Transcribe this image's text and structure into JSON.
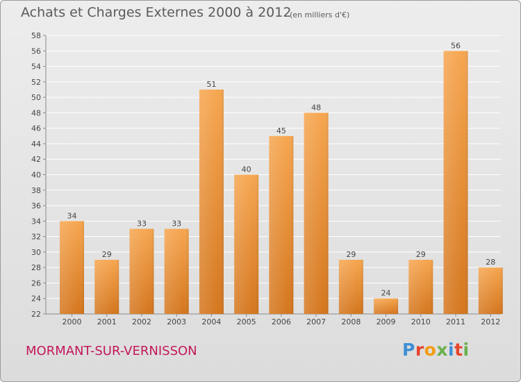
{
  "header": {
    "title": "Achats et Charges Externes 2000 à 2012",
    "unit": "(en milliers d'€)"
  },
  "footer": {
    "commune": "MORMANT-SUR-VERNISSON",
    "logo": "Proxiti",
    "logo_colors": [
      "#3f8fd6",
      "#e8452c",
      "#f39c12",
      "#6ab04c",
      "#3f8fd6",
      "#e8452c",
      "#6ab04c"
    ]
  },
  "colors": {
    "bar_top": "#f6a650",
    "bar_bottom": "#d4761e",
    "grid": "#ffffff",
    "text": "#444444",
    "commune": "#c2185b"
  },
  "chart_data": {
    "type": "bar",
    "title": "Achats et Charges Externes 2000 à 2012",
    "subtitle": "(en milliers d'€)",
    "xlabel": "",
    "ylabel": "",
    "categories": [
      "2000",
      "2001",
      "2002",
      "2003",
      "2004",
      "2005",
      "2006",
      "2007",
      "2008",
      "2009",
      "2010",
      "2011",
      "2012"
    ],
    "values": [
      34,
      29,
      33,
      33,
      51,
      40,
      45,
      48,
      29,
      24,
      29,
      56,
      28
    ],
    "ylim": [
      22,
      58
    ],
    "ytick_step": 2,
    "grid": true,
    "legend": "none"
  }
}
